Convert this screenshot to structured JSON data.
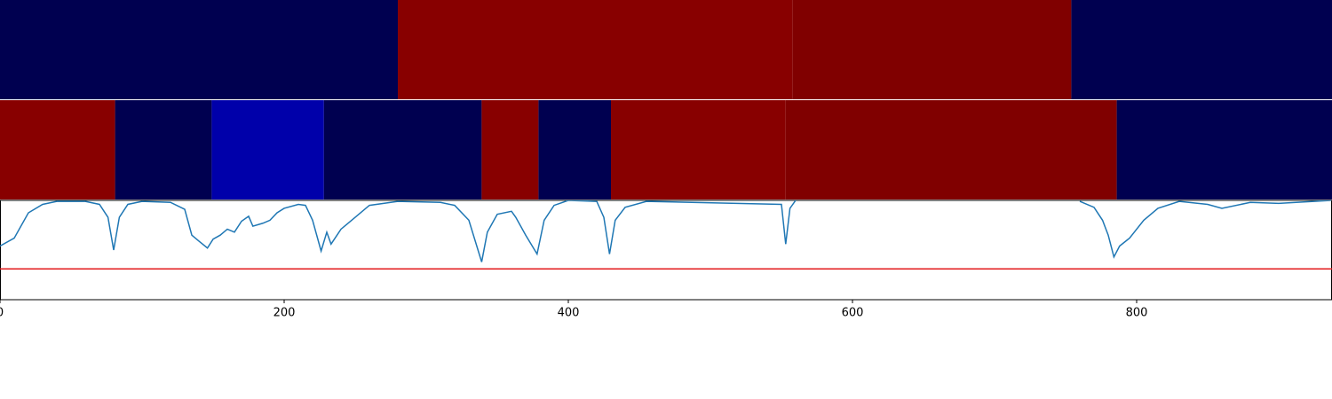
{
  "chart_data": {
    "type": "tracks",
    "xlim": [
      0,
      937.5
    ],
    "xticks": [
      0,
      200,
      400,
      600,
      800
    ],
    "tracks": [
      {
        "segments": [
          {
            "start": 0,
            "end": 280,
            "color": "#000050"
          },
          {
            "start": 280,
            "end": 558,
            "color": "#880000"
          },
          {
            "start": 558,
            "end": 754,
            "color": "#800000"
          },
          {
            "start": 754,
            "end": 937.5,
            "color": "#000050"
          }
        ]
      },
      {
        "segments": [
          {
            "start": 0,
            "end": 81,
            "color": "#880000"
          },
          {
            "start": 81,
            "end": 149,
            "color": "#000050"
          },
          {
            "start": 149,
            "end": 228,
            "color": "#0000aa"
          },
          {
            "start": 228,
            "end": 339,
            "color": "#000050"
          },
          {
            "start": 339,
            "end": 379,
            "color": "#880000"
          },
          {
            "start": 379,
            "end": 430,
            "color": "#000050"
          },
          {
            "start": 430,
            "end": 553,
            "color": "#880000"
          },
          {
            "start": 553,
            "end": 786,
            "color": "#800000"
          },
          {
            "start": 786,
            "end": 937.5,
            "color": "#000050"
          }
        ]
      }
    ],
    "ylim": [
      0,
      1
    ],
    "x": [
      0,
      10,
      20,
      30,
      40,
      60,
      70,
      76,
      80,
      84,
      90,
      100,
      120,
      130,
      135,
      140,
      146,
      150,
      155,
      160,
      165,
      170,
      175,
      178,
      185,
      190,
      195,
      200,
      210,
      215,
      220,
      226,
      230,
      233,
      240,
      250,
      260,
      280,
      310,
      320,
      330,
      336,
      339,
      343,
      350,
      360,
      363,
      370,
      378,
      383,
      390,
      400,
      420,
      425,
      429,
      433,
      440,
      455,
      550,
      553,
      556,
      560,
      650,
      760,
      770,
      776,
      780,
      784,
      788,
      795,
      805,
      815,
      830,
      850,
      860,
      880,
      900,
      937
    ],
    "series": [
      {
        "color": "#1f77b4",
        "values": [
          0.54,
          0.62,
          0.875,
          0.96,
          0.99,
          0.99,
          0.96,
          0.83,
          0.5,
          0.83,
          0.96,
          0.99,
          0.98,
          0.91,
          0.65,
          0.59,
          0.52,
          0.61,
          0.65,
          0.71,
          0.68,
          0.79,
          0.84,
          0.74,
          0.77,
          0.8,
          0.875,
          0.92,
          0.96,
          0.95,
          0.8,
          0.49,
          0.68,
          0.56,
          0.71,
          0.83,
          0.95,
          0.99,
          0.98,
          0.95,
          0.8,
          0.52,
          0.38,
          0.68,
          0.86,
          0.89,
          0.83,
          0.65,
          0.46,
          0.8,
          0.95,
          1.0,
          0.99,
          0.83,
          0.46,
          0.8,
          0.93,
          0.99,
          0.96,
          0.56,
          0.92,
          1.0,
          null,
          0.99,
          0.93,
          0.8,
          0.65,
          0.43,
          0.54,
          0.62,
          0.8,
          0.92,
          0.99,
          0.96,
          0.92,
          0.98,
          0.97,
          1.0
        ]
      }
    ],
    "hline": {
      "value": 0.31,
      "color": "#e31a1c"
    }
  }
}
